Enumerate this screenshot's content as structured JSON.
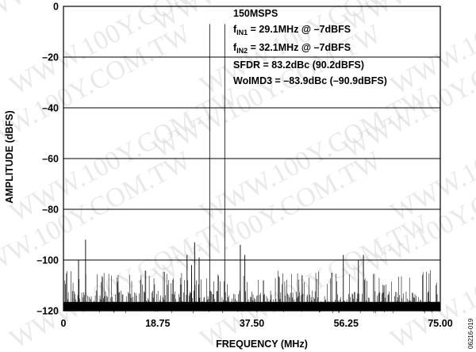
{
  "chart_data": {
    "type": "line",
    "title": "",
    "xlabel": "FREQUENCY (MHz)",
    "ylabel": "AMPLITUDE (dBFS)",
    "xlim": [
      0,
      75
    ],
    "ylim": [
      -120,
      0
    ],
    "x_ticks": [
      "0",
      "18.75",
      "37.50",
      "56.25",
      "75.00"
    ],
    "x_tick_values": [
      0,
      18.75,
      37.5,
      56.25,
      75
    ],
    "y_ticks": [
      "0",
      "–20",
      "–40",
      "–60",
      "–80",
      "–100",
      "–120"
    ],
    "y_tick_values": [
      0,
      -20,
      -40,
      -60,
      -80,
      -100,
      -120
    ],
    "grid": "horizontal",
    "annotations": {
      "rate": "150MSPS",
      "fin1_prefix": "f",
      "fin1_sub": "IN1",
      "fin1_rest": " = 29.1MHz @ –7dBFS",
      "fin2_prefix": "f",
      "fin2_sub": "IN2",
      "fin2_rest": " = 32.1MHz @ –7dBFS",
      "sfdr": "SFDR = 83.2dBc (90.2dBFS)",
      "woimd3": "WoIMD3 = –83.9dBc (–90.9dBFS)"
    },
    "series": [
      {
        "values_note": "FFT spectrum",
        "tones": [
          {
            "x": 29.1,
            "y": -7
          },
          {
            "x": 32.1,
            "y": -7
          }
        ],
        "spurs": [
          {
            "x": 3.0,
            "y": -100
          },
          {
            "x": 4.4,
            "y": -92
          },
          {
            "x": 24.6,
            "y": -98
          },
          {
            "x": 25.5,
            "y": -102
          },
          {
            "x": 26.1,
            "y": -93
          },
          {
            "x": 27.0,
            "y": -99
          },
          {
            "x": 35.2,
            "y": -94
          },
          {
            "x": 36.1,
            "y": -98
          },
          {
            "x": 39.8,
            "y": -108
          },
          {
            "x": 47.5,
            "y": -106
          },
          {
            "x": 53.4,
            "y": -105
          },
          {
            "x": 55.7,
            "y": -98
          },
          {
            "x": 58.7,
            "y": -100
          },
          {
            "x": 59.7,
            "y": -98
          },
          {
            "x": 63.8,
            "y": -110
          }
        ],
        "noise_floor": -115
      }
    ]
  },
  "watermark": "WWW.100Y.COM.TW",
  "figure_id": "06216-019"
}
